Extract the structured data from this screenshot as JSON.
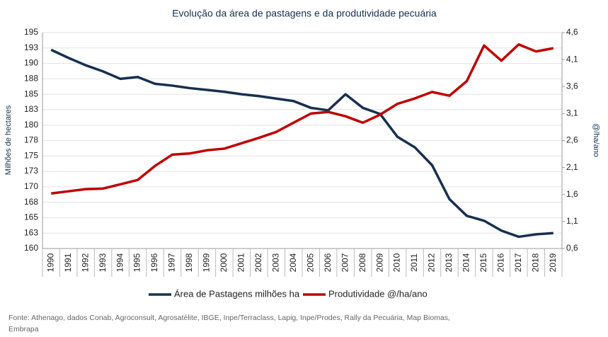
{
  "chart_data": {
    "type": "line",
    "title": "Evolução da área de pastagens e da produtividade pecuária",
    "ylabel": "Milhões de hectares",
    "y2label": "@/ha/ano",
    "source": "Fonte: Athenago, dados Conab, Agroconsult, Agrosatélite, IBGE, Inpe/Terraclass,  Lapig, Inpe/Prodes, Rally da Pecuária, Map Biomas, Embrapa",
    "categories": [
      "1990",
      "1991",
      "1992",
      "1993",
      "1994",
      "1995",
      "1996",
      "1997",
      "1998",
      "1999",
      "2000",
      "2001",
      "2002",
      "2003",
      "2004",
      "2005",
      "2006",
      "2007",
      "2008",
      "2009",
      "2010",
      "2011",
      "2012",
      "2013",
      "2014",
      "2015",
      "2016",
      "2017",
      "2018",
      "2019"
    ],
    "series": [
      {
        "name": "Área de Pastagens milhões ha",
        "color": "#17304f",
        "axis": "y",
        "values": [
          192.2,
          190.9,
          189.7,
          188.7,
          187.5,
          187.8,
          186.7,
          186.4,
          186.0,
          185.7,
          185.4,
          185.0,
          184.7,
          184.3,
          183.9,
          182.8,
          182.4,
          185.0,
          182.8,
          181.8,
          178.1,
          176.4,
          173.5,
          168.0,
          165.3,
          164.5,
          162.9,
          161.9,
          162.3,
          162.5
        ]
      },
      {
        "name": "Produtividade  @/ha/ano",
        "color": "#c00000",
        "axis": "y2",
        "values": [
          1.62,
          1.66,
          1.7,
          1.71,
          1.79,
          1.87,
          2.13,
          2.34,
          2.36,
          2.42,
          2.45,
          2.55,
          2.65,
          2.76,
          2.93,
          3.1,
          3.13,
          3.05,
          2.93,
          3.08,
          3.28,
          3.38,
          3.5,
          3.43,
          3.7,
          4.36,
          4.08,
          4.38,
          4.25,
          4.31
        ]
      }
    ],
    "ylim": [
      160,
      195
    ],
    "yticks": [
      160,
      {
        "value": 162.5,
        "label": "163"
      },
      165,
      {
        "value": 167.5,
        "label": "168"
      },
      170,
      {
        "value": 172.5,
        "label": "173"
      },
      175,
      {
        "value": 177.5,
        "label": "178"
      },
      180,
      {
        "value": 182.5,
        "label": "183"
      },
      185,
      {
        "value": 187.5,
        "label": "188"
      },
      190,
      {
        "value": 192.5,
        "label": "193"
      },
      195
    ],
    "y2lim": [
      0.6,
      4.6
    ],
    "y2ticks": [
      {
        "value": 0.6,
        "label": "0,6"
      },
      {
        "value": 1.1,
        "label": "1,1"
      },
      {
        "value": 1.6,
        "label": "1,6"
      },
      {
        "value": 2.1,
        "label": "2,1"
      },
      {
        "value": 2.6,
        "label": "2,6"
      },
      {
        "value": 3.1,
        "label": "3,1"
      },
      {
        "value": 3.6,
        "label": "3,6"
      },
      {
        "value": 4.1,
        "label": "4,1"
      },
      {
        "value": 4.6,
        "label": "4,6"
      }
    ],
    "grid": true
  }
}
